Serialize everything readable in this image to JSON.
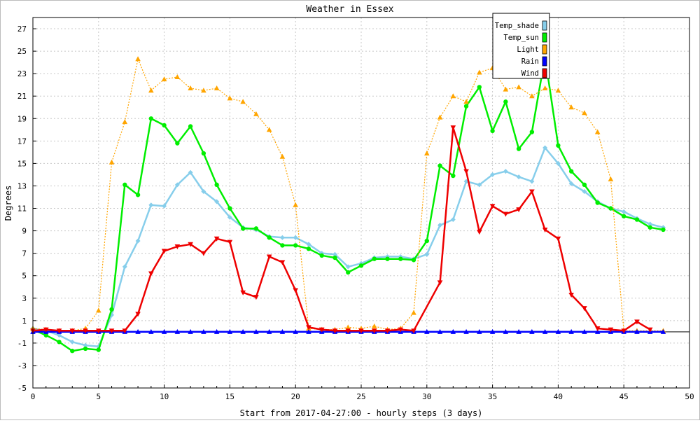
{
  "chart_data": {
    "type": "line",
    "title": "Weather in Essex",
    "xlabel": "Start from 2017-04-27:00 - hourly steps (3 days)",
    "ylabel": "Degrees",
    "xlim": [
      0,
      50
    ],
    "ylim": [
      -5,
      28
    ],
    "x_ticks": [
      0,
      5,
      10,
      15,
      20,
      25,
      30,
      35,
      40,
      45,
      50
    ],
    "y_ticks": [
      -5,
      -3,
      -1,
      1,
      3,
      5,
      7,
      9,
      11,
      13,
      15,
      17,
      19,
      21,
      23,
      25,
      27
    ],
    "grid": true,
    "legend_position": "top-right",
    "zero_line": true,
    "series": [
      {
        "name": "Temp_shade",
        "color": "#87ceeb",
        "marker": "diamond",
        "style": "solid",
        "x": [
          0,
          1,
          2,
          3,
          4,
          5,
          6,
          7,
          8,
          9,
          10,
          11,
          12,
          13,
          14,
          15,
          16,
          17,
          18,
          19,
          20,
          21,
          22,
          23,
          24,
          25,
          26,
          27,
          28,
          29,
          30,
          31,
          32,
          33,
          34,
          35,
          36,
          37,
          38,
          39,
          40,
          41,
          42,
          43,
          44,
          45,
          46,
          47,
          48
        ],
        "values": [
          0.3,
          0.1,
          -0.3,
          -0.9,
          -1.2,
          -1.3,
          1.5,
          5.8,
          8.1,
          11.3,
          11.2,
          13.1,
          14.2,
          12.5,
          11.6,
          10.2,
          9.3,
          9.1,
          8.5,
          8.4,
          8.4,
          7.8,
          7,
          6.9,
          5.8,
          6.1,
          6.6,
          6.7,
          6.7,
          6.5,
          6.9,
          9.5,
          10,
          13.4,
          13.1,
          14,
          14.3,
          13.8,
          13.4,
          16.4,
          15,
          13.2,
          12.5,
          11.6,
          11,
          10.7,
          10.1,
          9.6,
          9.3
        ]
      },
      {
        "name": "Temp_sun",
        "color": "#00ee00",
        "marker": "circle",
        "style": "solid",
        "x": [
          0,
          1,
          2,
          3,
          4,
          5,
          6,
          7,
          8,
          9,
          10,
          11,
          12,
          13,
          14,
          15,
          16,
          17,
          18,
          19,
          20,
          21,
          22,
          23,
          24,
          25,
          26,
          27,
          28,
          29,
          30,
          31,
          32,
          33,
          34,
          35,
          36,
          37,
          38,
          39,
          40,
          41,
          42,
          43,
          44,
          45,
          46,
          47,
          48
        ],
        "values": [
          0.2,
          -0.3,
          -0.9,
          -1.7,
          -1.5,
          -1.6,
          2,
          13.1,
          12.2,
          19,
          18.4,
          16.8,
          18.3,
          15.9,
          13.1,
          11,
          9.2,
          9.2,
          8.4,
          7.7,
          7.7,
          7.4,
          6.8,
          6.6,
          5.3,
          5.9,
          6.5,
          6.5,
          6.5,
          6.4,
          8.1,
          14.8,
          13.9,
          20.1,
          21.8,
          17.9,
          20.5,
          16.3,
          17.8,
          24.5,
          16.6,
          14.3,
          13.1,
          11.5,
          11,
          10.3,
          10,
          9.3,
          9.1
        ]
      },
      {
        "name": "Light",
        "color": "#ffa500",
        "marker": "triangle-up",
        "style": "dotted",
        "x": [
          0,
          1,
          2,
          3,
          4,
          5,
          6,
          7,
          8,
          9,
          10,
          11,
          12,
          13,
          14,
          15,
          16,
          17,
          18,
          19,
          20,
          21,
          22,
          23,
          24,
          25,
          26,
          27,
          28,
          29,
          30,
          31,
          32,
          33,
          34,
          35,
          36,
          37,
          38,
          39,
          40,
          41,
          42,
          43,
          44,
          45,
          46,
          47,
          48
        ],
        "values": [
          0.3,
          0.2,
          0.1,
          0.1,
          0.3,
          1.9,
          15.1,
          18.7,
          24.3,
          21.5,
          22.5,
          22.7,
          21.7,
          21.5,
          21.7,
          20.8,
          20.5,
          19.4,
          18,
          15.6,
          11.3,
          0.3,
          0.2,
          0.2,
          0.4,
          0.3,
          0.5,
          0.2,
          0.3,
          1.7,
          15.9,
          19.1,
          21,
          20.5,
          23.1,
          23.5,
          21.6,
          21.8,
          21,
          21.7,
          21.5,
          20,
          19.5,
          17.8,
          13.6,
          0.1,
          0.1,
          0.1,
          0.1
        ]
      },
      {
        "name": "Rain",
        "color": "#0000ff",
        "marker": "triangle-up",
        "style": "solid",
        "x": [
          0,
          1,
          2,
          3,
          4,
          5,
          6,
          7,
          8,
          9,
          10,
          11,
          12,
          13,
          14,
          15,
          16,
          17,
          18,
          19,
          20,
          21,
          22,
          23,
          24,
          25,
          26,
          27,
          28,
          29,
          30,
          31,
          32,
          33,
          34,
          35,
          36,
          37,
          38,
          39,
          40,
          41,
          42,
          43,
          44,
          45,
          46,
          47,
          48
        ],
        "values": [
          0,
          0,
          0,
          0,
          0,
          0,
          0,
          0,
          0,
          0,
          0,
          0,
          0,
          0,
          0,
          0,
          0,
          0,
          0,
          0,
          0,
          0,
          0,
          0,
          0,
          0,
          0,
          0,
          0,
          0,
          0,
          0,
          0,
          0,
          0,
          0,
          0,
          0,
          0,
          0,
          0,
          0,
          0,
          0,
          0,
          0,
          0,
          0,
          0
        ]
      },
      {
        "name": "Wind",
        "color": "#ee0000",
        "marker": "triangle-down",
        "style": "solid",
        "x": [
          0,
          1,
          2,
          3,
          4,
          5,
          6,
          7,
          8,
          9,
          10,
          11,
          12,
          13,
          14,
          15,
          16,
          17,
          18,
          19,
          20,
          21,
          22,
          23,
          24,
          25,
          26,
          27,
          28,
          29,
          31,
          32,
          33,
          34,
          35,
          36,
          37,
          38,
          39,
          40,
          41,
          42,
          43,
          44,
          45,
          46,
          47
        ],
        "values": [
          0.1,
          0.2,
          0.1,
          0.1,
          0.1,
          0.1,
          0.1,
          0.1,
          1.6,
          5.2,
          7.2,
          7.6,
          7.8,
          7,
          8.3,
          8,
          3.5,
          3.1,
          6.7,
          6.2,
          3.7,
          0.4,
          0.2,
          0.1,
          0.1,
          0.1,
          0.1,
          0.1,
          0.2,
          0.1,
          4.4,
          18.2,
          14.3,
          8.9,
          11.2,
          10.5,
          10.9,
          12.5,
          9.1,
          8.3,
          3.3,
          2.1,
          0.3,
          0.2,
          0.1,
          0.9,
          0.2
        ]
      }
    ]
  }
}
